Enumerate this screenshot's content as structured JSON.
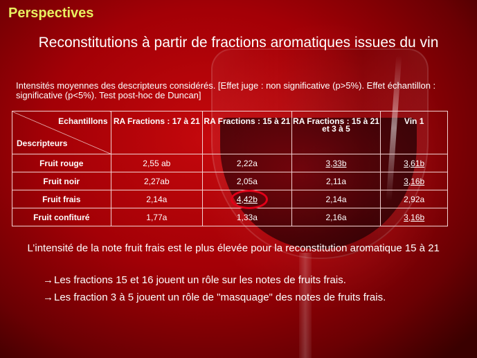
{
  "slide": {
    "section_title": "Perspectives",
    "title": "Reconstitutions à partir de fractions aromatiques issues du vin",
    "intro": "Intensités moyennes des descripteurs considérés. [Effet juge : non significative (p>5%). Effet échantillon : significative (p<5%). Test post-hoc de Duncan]",
    "colors": {
      "section_title": "#e8f060",
      "highlight_circle": "#e00018"
    }
  },
  "table": {
    "corner_top": "Echantillons",
    "corner_bottom": "Descripteurs",
    "columns": [
      "RA Fractions : 17 à 21",
      "RA Fractions : 15 à 21",
      "RA Fractions : 15 à 21 et 3 à 5",
      "Vin 1"
    ],
    "rows": [
      {
        "label": "Fruit rouge",
        "values": [
          "2,55 ab",
          "2,22a",
          "3,33b",
          "3,61b"
        ]
      },
      {
        "label": "Fruit noir",
        "values": [
          "2,27ab",
          "2,05a",
          "2,11a",
          "3,16b"
        ]
      },
      {
        "label": "Fruit frais",
        "values": [
          "2,14a",
          "4,42b",
          "2,14a",
          "2,92a"
        ]
      },
      {
        "label": "Fruit confituré",
        "values": [
          "1,77a",
          "1,33a",
          "2,16a",
          "3,16b"
        ]
      }
    ]
  },
  "conclusion": {
    "text": "L’intensité de la note fruit frais est le plus élevée pour la reconstitution aromatique 15 à 21",
    "arrow": "→",
    "points": [
      "Les fractions 15 et 16 jouent un rôle sur les notes de fruits frais.",
      "Les fraction 3 à 5 jouent un rôle de \"masquage\" des notes de fruits frais."
    ]
  }
}
